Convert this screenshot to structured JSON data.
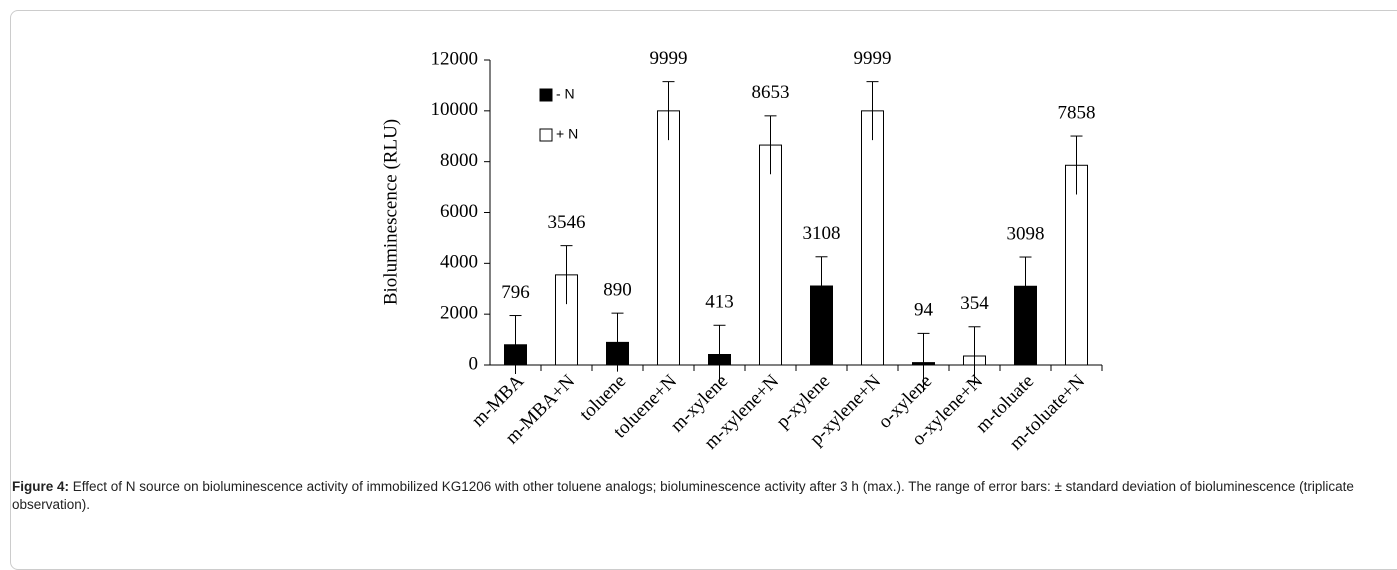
{
  "chart_data": {
    "type": "bar",
    "y_label": "Bioluminescence (RLU)",
    "categories": [
      "m-MBA",
      "m-MBA+N",
      "toluene",
      "toluene+N",
      "m-xylene",
      "m-xylene+N",
      "p-xylene",
      "p-xylene+N",
      "o-xylene",
      "o-xylene+N",
      "m-toluate",
      "m-toluate+N"
    ],
    "series": [
      {
        "name": "- N",
        "color": "#000000",
        "values": [
          796,
          null,
          890,
          null,
          413,
          null,
          3108,
          null,
          94,
          null,
          3098,
          null
        ],
        "errors": [
          1150,
          null,
          1150,
          null,
          1150,
          null,
          1150,
          null,
          1150,
          null,
          1150,
          null
        ]
      },
      {
        "name": "+ N",
        "color": "#ffffff",
        "values": [
          null,
          3546,
          null,
          9999,
          null,
          8653,
          null,
          9999,
          null,
          354,
          null,
          7858
        ],
        "errors": [
          null,
          1150,
          null,
          1150,
          null,
          1150,
          null,
          1150,
          null,
          1150,
          null,
          1150
        ]
      }
    ],
    "ylim": [
      0,
      12000
    ],
    "yticks": [
      0,
      2000,
      4000,
      6000,
      8000,
      10000,
      12000
    ],
    "grid": false
  },
  "caption": {
    "label": "Figure 4:",
    "text": "Effect of N source on bioluminescence activity of immobilized KG1206 with other toluene analogs; bioluminescence activity after 3 h (max.). The range of error bars: ± standard deviation of bioluminescence (triplicate observation)."
  }
}
